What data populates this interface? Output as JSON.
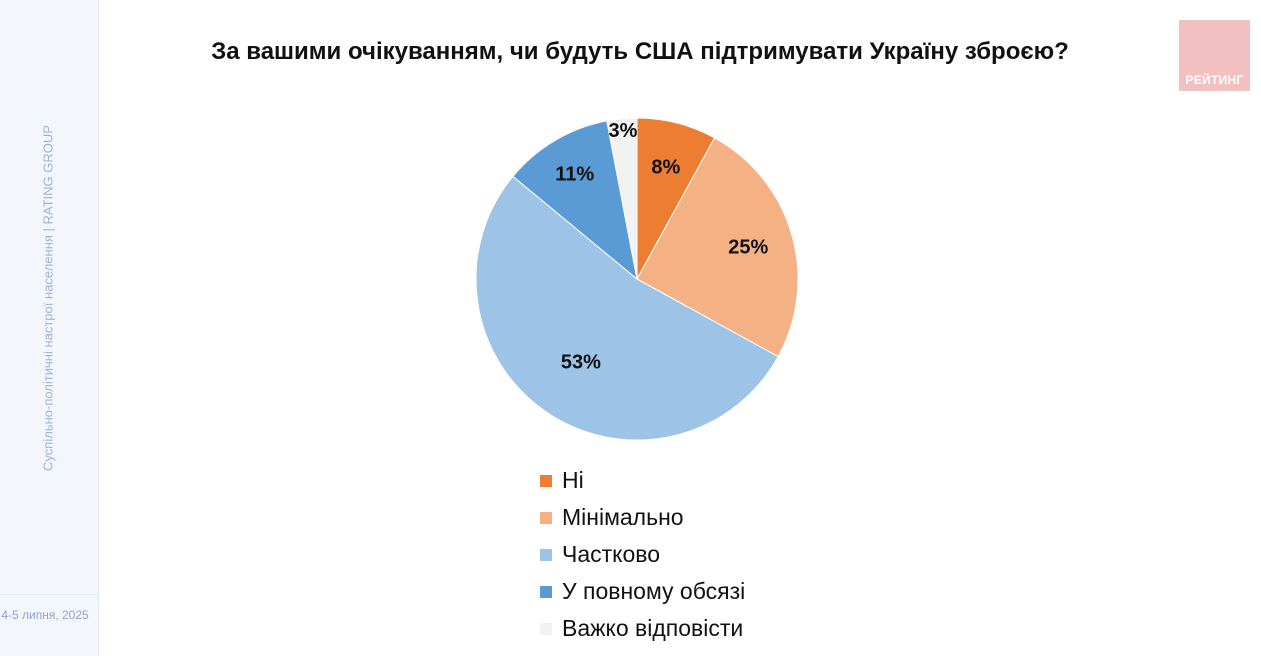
{
  "sidebar": {
    "vertical_text": "Суспільно-політичні настрої населення |  RATING GROUP",
    "date": "4-5 липня, 2025"
  },
  "logo": {
    "text": "РЕЙТИНГ"
  },
  "chart_data": {
    "type": "pie",
    "title": "За вашими очікуванням, чи будуть США підтримувати Україну зброєю?",
    "slices": [
      {
        "name": "Ні",
        "value": 8,
        "label": "8%",
        "color": "#ed7d31"
      },
      {
        "name": "Мінімально",
        "value": 25,
        "label": "25%",
        "color": "#f4b183"
      },
      {
        "name": "Частково",
        "value": 53,
        "label": "53%",
        "color": "#9dc3e6"
      },
      {
        "name": "У повному обсязі",
        "value": 11,
        "label": "11%",
        "color": "#5b9bd5"
      },
      {
        "name": "Важко відповісти",
        "value": 3,
        "label": "3%",
        "color": "#f2f2f2"
      }
    ],
    "legend_position": "bottom"
  }
}
